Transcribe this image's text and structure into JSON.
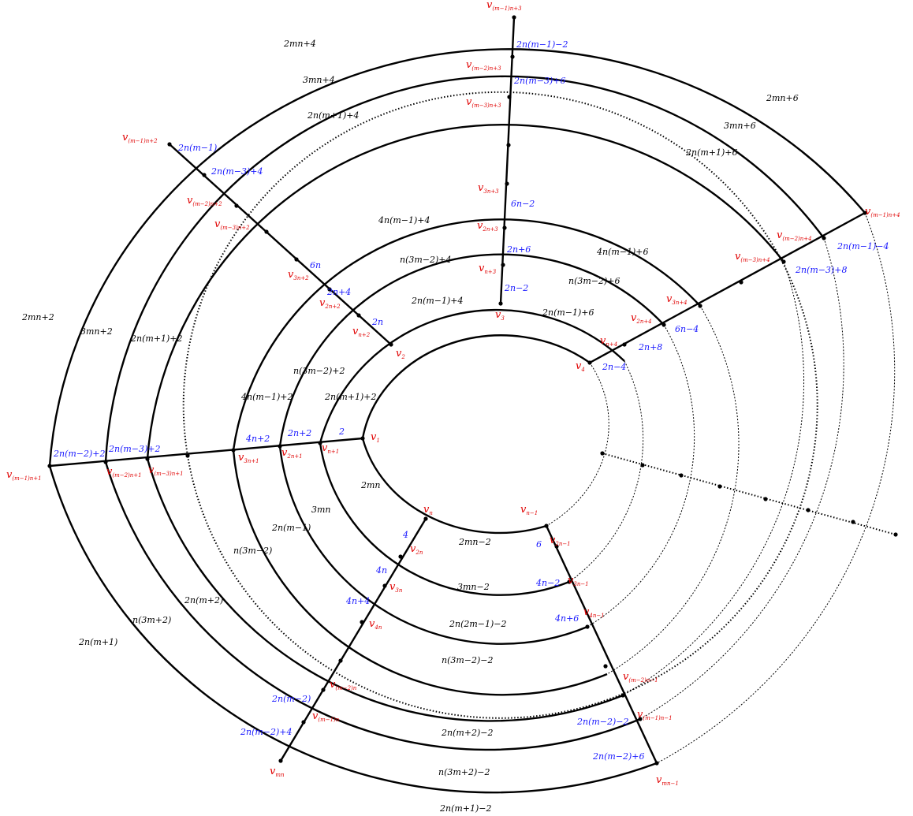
{
  "vertices": [
    {
      "id": "v1",
      "base": "v",
      "sub": "1"
    },
    {
      "id": "v2",
      "base": "v",
      "sub": "2"
    },
    {
      "id": "v3",
      "base": "v",
      "sub": "3"
    },
    {
      "id": "v4",
      "base": "v",
      "sub": "4"
    },
    {
      "id": "vn",
      "base": "v",
      "sub": "n"
    },
    {
      "id": "vn-1",
      "base": "v",
      "sub": "n−1"
    },
    {
      "id": "vn+1",
      "base": "v",
      "sub": "n+1"
    },
    {
      "id": "vn+2",
      "base": "v",
      "sub": "n+2"
    },
    {
      "id": "vn+3",
      "base": "v",
      "sub": "n+3"
    },
    {
      "id": "vn+4",
      "base": "v",
      "sub": "n+4"
    },
    {
      "id": "v2n",
      "base": "v",
      "sub": "2n"
    },
    {
      "id": "v2n-1",
      "base": "v",
      "sub": "2n−1"
    },
    {
      "id": "v2n+1",
      "base": "v",
      "sub": "2n+1"
    },
    {
      "id": "v2n+2",
      "base": "v",
      "sub": "2n+2"
    },
    {
      "id": "v2n+3",
      "base": "v",
      "sub": "2n+3"
    },
    {
      "id": "v2n+4",
      "base": "v",
      "sub": "2n+4"
    },
    {
      "id": "v3n",
      "base": "v",
      "sub": "3n"
    },
    {
      "id": "v3n-1",
      "base": "v",
      "sub": "3n−1"
    },
    {
      "id": "v3n+1",
      "base": "v",
      "sub": "3n+1"
    },
    {
      "id": "v3n+2",
      "base": "v",
      "sub": "3n+2"
    },
    {
      "id": "v3n+3",
      "base": "v",
      "sub": "3n+3"
    },
    {
      "id": "v3n+4",
      "base": "v",
      "sub": "3n+4"
    },
    {
      "id": "v4n",
      "base": "v",
      "sub": "4n"
    },
    {
      "id": "v4n-1",
      "base": "v",
      "sub": "4n−1"
    },
    {
      "id": "v(m-2)n",
      "base": "v",
      "sub": "(m−2)n"
    },
    {
      "id": "v(m-2)n-1",
      "base": "v",
      "sub": "(m−2)n−1"
    },
    {
      "id": "v(m-1)n",
      "base": "v",
      "sub": "(m−1)n"
    },
    {
      "id": "v(m-1)n-1",
      "base": "v",
      "sub": "(m−1)n−1"
    },
    {
      "id": "vmn",
      "base": "v",
      "sub": "mn"
    },
    {
      "id": "vmn-1",
      "base": "v",
      "sub": "mn−1"
    },
    {
      "id": "v(m-1)n+1",
      "base": "v",
      "sub": "(m−1)n+1"
    },
    {
      "id": "v(m-2)n+1",
      "base": "v",
      "sub": "(m−2)n+1"
    },
    {
      "id": "v(m-3)n+1",
      "base": "v",
      "sub": "(m−3)n+1"
    },
    {
      "id": "v(m-1)n+2",
      "base": "v",
      "sub": "(m−1)n+2"
    },
    {
      "id": "v(m-2)n+2",
      "base": "v",
      "sub": "(m−2)n+2"
    },
    {
      "id": "v(m-3)n+2",
      "base": "v",
      "sub": "(m−3)n+2"
    },
    {
      "id": "v(m-1)n+3",
      "base": "v",
      "sub": "(m−1)n+3"
    },
    {
      "id": "v(m-2)n+3",
      "base": "v",
      "sub": "(m−2)n+3"
    },
    {
      "id": "v(m-3)n+3",
      "base": "v",
      "sub": "(m−3)n+3"
    },
    {
      "id": "v(m-1)n+4",
      "base": "v",
      "sub": "(m−1)n+4"
    },
    {
      "id": "v(m-2)n+4",
      "base": "v",
      "sub": "(m−2)n+4"
    },
    {
      "id": "v(m-3)n+4",
      "base": "v",
      "sub": "(m−3)n+4"
    }
  ],
  "edge_labels": [
    {
      "id": "e1",
      "text": "2"
    },
    {
      "id": "e2",
      "text": "2n+2"
    },
    {
      "id": "e3",
      "text": "4n+2"
    },
    {
      "id": "e4",
      "text": "2n(m−3)+2"
    },
    {
      "id": "e5",
      "text": "2n(m−2)+2"
    },
    {
      "id": "e6",
      "text": "2n"
    },
    {
      "id": "e7",
      "text": "2n+4"
    },
    {
      "id": "e8",
      "text": "6n"
    },
    {
      "id": "e9",
      "text": "2n(m−3)+4"
    },
    {
      "id": "e10",
      "text": "2n(m−1)"
    },
    {
      "id": "e11",
      "text": "2n−2"
    },
    {
      "id": "e12",
      "text": "2n+6"
    },
    {
      "id": "e13",
      "text": "6n−2"
    },
    {
      "id": "e14",
      "text": "2n(m−3)+6"
    },
    {
      "id": "e15",
      "text": "2n(m−1)−2"
    },
    {
      "id": "e16",
      "text": "2n−4"
    },
    {
      "id": "e17",
      "text": "2n+8"
    },
    {
      "id": "e18",
      "text": "6n−4"
    },
    {
      "id": "e19",
      "text": "2n(m−3)+8"
    },
    {
      "id": "e20",
      "text": "2n(m−1)−4"
    },
    {
      "id": "e21",
      "text": "4"
    },
    {
      "id": "e22",
      "text": "4n"
    },
    {
      "id": "e23",
      "text": "4n+4"
    },
    {
      "id": "e24",
      "text": "2n(m−2)"
    },
    {
      "id": "e25",
      "text": "2n(m−2)+4"
    },
    {
      "id": "e26",
      "text": "6"
    },
    {
      "id": "e27",
      "text": "4n−2"
    },
    {
      "id": "e28",
      "text": "4n+6"
    },
    {
      "id": "e29",
      "text": "2n(m−2)−2"
    },
    {
      "id": "e30",
      "text": "2n(m−2)+6"
    }
  ],
  "face_labels": [
    {
      "id": "f1",
      "text": "2n(m+1)+2"
    },
    {
      "id": "f2",
      "text": "n(3m−2)+2"
    },
    {
      "id": "f3",
      "text": "4n(m−1)+2"
    },
    {
      "id": "f4",
      "text": "2n(m+1)+2"
    },
    {
      "id": "f5",
      "text": "3mn+2"
    },
    {
      "id": "f6",
      "text": "2mn+2"
    },
    {
      "id": "f7",
      "text": "2n(m−1)+4"
    },
    {
      "id": "f8",
      "text": "n(3m−2)+4"
    },
    {
      "id": "f9",
      "text": "4n(m−1)+4"
    },
    {
      "id": "f10",
      "text": "2n(m+1)+4"
    },
    {
      "id": "f11",
      "text": "3mn+4"
    },
    {
      "id": "f12",
      "text": "2mn+4"
    },
    {
      "id": "f13",
      "text": "2n(m−1)+6"
    },
    {
      "id": "f14",
      "text": "n(3m−2)+6"
    },
    {
      "id": "f15",
      "text": "4n(m−1)+6"
    },
    {
      "id": "f16",
      "text": "2n(m+1)+6"
    },
    {
      "id": "f17",
      "text": "3mn+6"
    },
    {
      "id": "f18",
      "text": "2mn+6"
    },
    {
      "id": "f19",
      "text": "2mn"
    },
    {
      "id": "f20",
      "text": "3mn"
    },
    {
      "id": "f21",
      "text": "2n(m−1)"
    },
    {
      "id": "f22",
      "text": "n(3m−2)"
    },
    {
      "id": "f23",
      "text": "2n(m+2)"
    },
    {
      "id": "f24",
      "text": "n(3m+2)"
    },
    {
      "id": "f25",
      "text": "2n(m+1)"
    },
    {
      "id": "f26",
      "text": "2mn−2"
    },
    {
      "id": "f27",
      "text": "3mn−2"
    },
    {
      "id": "f28",
      "text": "2n(2m−1)−2"
    },
    {
      "id": "f29",
      "text": "n(3m−2)−2"
    },
    {
      "id": "f30",
      "text": "2n(m+2)−2"
    },
    {
      "id": "f31",
      "text": "n(3m+2)−2"
    },
    {
      "id": "f32",
      "text": "2n(m+1)−2"
    }
  ]
}
